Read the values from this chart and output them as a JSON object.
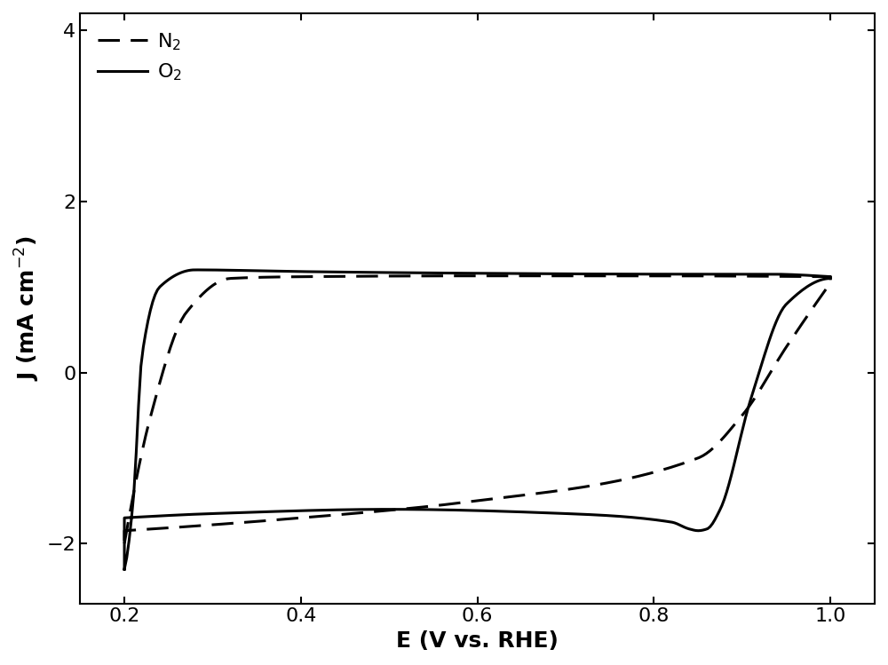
{
  "title": "",
  "xlabel": "E (V vs. RHE)",
  "ylabel": "J (mA cm$^{-2}$)",
  "xlim": [
    0.15,
    1.05
  ],
  "ylim": [
    -2.7,
    4.2
  ],
  "yticks": [
    -2,
    0,
    2,
    4
  ],
  "xticks": [
    0.2,
    0.4,
    0.6,
    0.8,
    1.0
  ],
  "background_color": "#ffffff",
  "line_color": "#000000",
  "linewidth": 2.2,
  "fontsize_labels": 18,
  "fontsize_ticks": 16,
  "legend_fontsize": 16
}
